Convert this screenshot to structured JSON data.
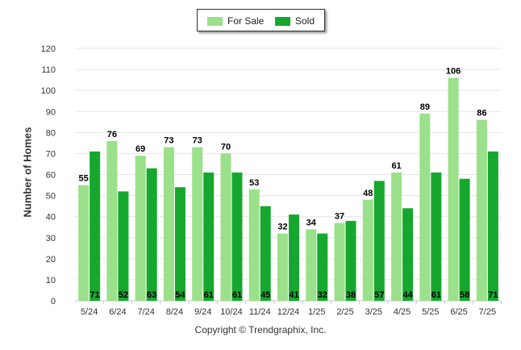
{
  "chart_data": {
    "type": "bar",
    "categories": [
      "5/24",
      "6/24",
      "7/24",
      "8/24",
      "9/24",
      "10/24",
      "11/24",
      "12/24",
      "1/25",
      "2/25",
      "3/25",
      "4/25",
      "5/25",
      "6/25",
      "7/25"
    ],
    "series": [
      {
        "name": "For Sale",
        "values": [
          55,
          76,
          69,
          73,
          73,
          70,
          53,
          32,
          34,
          37,
          48,
          61,
          89,
          106,
          86
        ],
        "color": "#9be08a"
      },
      {
        "name": "Sold",
        "values": [
          71,
          52,
          63,
          54,
          61,
          61,
          45,
          41,
          32,
          38,
          57,
          44,
          61,
          58,
          71
        ],
        "color": "#16a82e"
      }
    ],
    "title": "",
    "xlabel": "",
    "ylabel": "Number of Homes",
    "ylim": [
      0,
      120
    ],
    "yticks": [
      0,
      10,
      20,
      30,
      40,
      50,
      60,
      70,
      80,
      90,
      100,
      110,
      120
    ],
    "grid": true,
    "legend_position": "top-center"
  },
  "footer": {
    "copyright": "Copyright © Trendgraphix, Inc."
  }
}
